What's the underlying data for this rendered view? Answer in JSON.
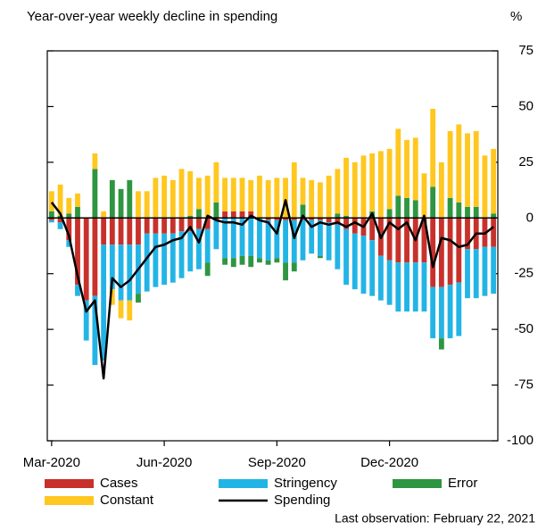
{
  "chart_data": {
    "type": "bar",
    "stacked": true,
    "title": "Year-over-year weekly decline in spending",
    "y_unit": "%",
    "footnote": "Last observation: February 22, 2021",
    "categories": [
      "Mar-2020",
      null,
      null,
      null,
      null,
      null,
      null,
      null,
      null,
      null,
      null,
      null,
      null,
      "Jun-2020",
      null,
      null,
      null,
      null,
      null,
      null,
      null,
      null,
      null,
      null,
      null,
      null,
      "Sep-2020",
      null,
      null,
      null,
      null,
      null,
      null,
      null,
      null,
      null,
      null,
      null,
      null,
      "Dec-2020",
      null,
      null,
      null,
      null,
      null,
      null,
      null,
      null,
      null,
      null,
      null,
      null
    ],
    "ylim": [
      -100,
      75
    ],
    "yticks": [
      75,
      50,
      25,
      0,
      -25,
      -50,
      -75,
      -100
    ],
    "series": [
      {
        "name": "Cases",
        "color": "#c8312b",
        "values": [
          -1,
          -2,
          -10,
          -30,
          -37,
          -35,
          -12,
          -12,
          -12,
          -12,
          -12,
          -7,
          -7,
          -7,
          -7,
          -6,
          -6,
          -5,
          -5,
          -1,
          3,
          3,
          3,
          3,
          0,
          -1,
          -1,
          -1,
          -1,
          -1,
          -1,
          -1,
          -2,
          -3,
          -5,
          -7,
          -8,
          -10,
          -17,
          -19,
          -20,
          -20,
          -20,
          -20,
          -31,
          -31,
          -30,
          -29,
          -14,
          -14,
          -13,
          -13
        ]
      },
      {
        "name": "Stringency",
        "color": "#23b4e6",
        "values": [
          -1,
          -3,
          -3,
          -5,
          -18,
          -31,
          -52,
          -20,
          -25,
          -25,
          -22,
          -26,
          -24,
          -23,
          -22,
          -21,
          -18,
          -18,
          -15,
          -13,
          -18,
          -18,
          -17,
          -17,
          -18,
          -18,
          -17,
          -19,
          -19,
          -18,
          -15,
          -16,
          -17,
          -20,
          -25,
          -25,
          -26,
          -25,
          -20,
          -20,
          -22,
          -22,
          -22,
          -22,
          -23,
          -23,
          -24,
          -24,
          -22,
          -22,
          -22,
          -21
        ]
      },
      {
        "name": "Error",
        "color": "#2e9640",
        "values": [
          3,
          1,
          2,
          5,
          0,
          22,
          0,
          17,
          13,
          17,
          -4,
          0,
          0,
          0,
          0,
          0,
          1,
          4,
          -6,
          7,
          -3,
          -4,
          -4,
          -5,
          -2,
          -2,
          -2,
          -8,
          -4,
          6,
          0,
          -1,
          0,
          2,
          1,
          0,
          0,
          3,
          0,
          4,
          10,
          9,
          8,
          0,
          14,
          -5,
          9,
          7,
          5,
          5,
          0,
          2
        ]
      },
      {
        "name": "Constant",
        "color": "#ffc71f",
        "values": [
          9,
          14,
          7,
          6,
          0,
          7,
          3,
          -7,
          -8,
          -9,
          12,
          12,
          18,
          19,
          17,
          22,
          20,
          14,
          19,
          18,
          15,
          15,
          15,
          14,
          19,
          17,
          18,
          18,
          25,
          12,
          17,
          16,
          19,
          20,
          26,
          25,
          28,
          26,
          30,
          27,
          30,
          26,
          28,
          20,
          35,
          25,
          30,
          35,
          33,
          34,
          28,
          29
        ]
      },
      {
        "name": "Spending",
        "type": "line",
        "color": "#000000",
        "values": [
          7,
          2,
          -8,
          -26,
          -42,
          -37,
          -72,
          -27,
          -31,
          -28,
          -23,
          -18,
          -13,
          -12,
          -10,
          -9,
          -4,
          -11,
          1,
          -1,
          -2,
          -2,
          -3,
          1,
          -1,
          -2,
          -7,
          8,
          -9,
          1,
          -4,
          -2,
          -3,
          -2,
          -4,
          -2,
          -4,
          2,
          -9,
          -2,
          -5,
          -2,
          -10,
          1,
          -22,
          -9,
          -10,
          -13,
          -12,
          -7,
          -7,
          -4
        ]
      }
    ]
  }
}
